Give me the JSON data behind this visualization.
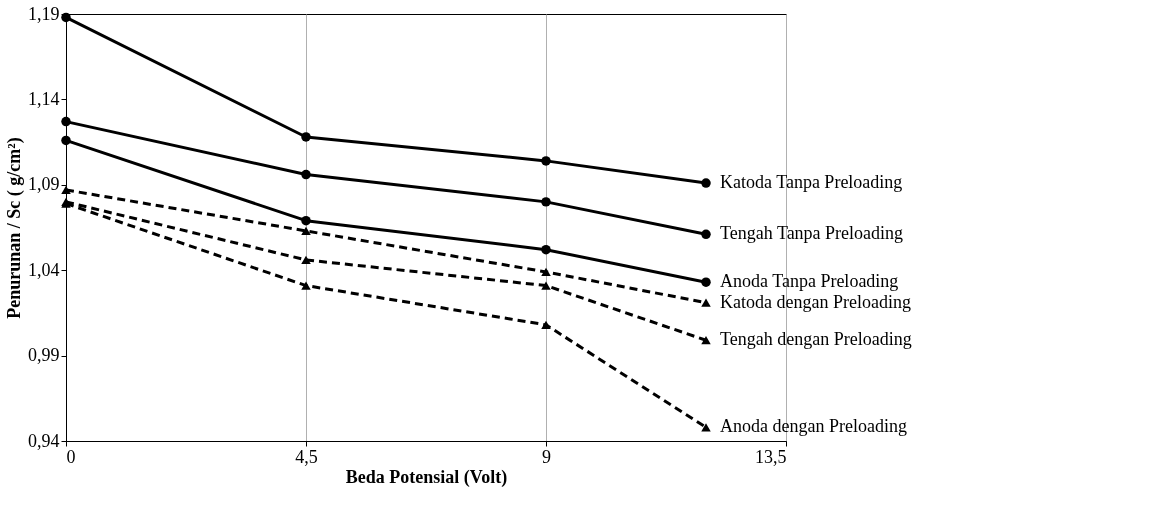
{
  "chart_data": {
    "type": "line",
    "xlabel": "Beda Potensial (Volt)",
    "ylabel": "Penurunan  / Sc ( g/cm²)",
    "x": [
      0,
      4.5,
      9,
      12
    ],
    "series": [
      {
        "name": "Katoda Tanpa Preloading",
        "color": "#000000",
        "marker": "circle",
        "line_style": "solid",
        "values": [
          1.188,
          1.118,
          1.104,
          1.091
        ]
      },
      {
        "name": "Tengah Tanpa Preloading",
        "color": "#000000",
        "marker": "circle",
        "line_style": "solid",
        "values": [
          1.127,
          1.096,
          1.08,
          1.061
        ]
      },
      {
        "name": "Anoda Tanpa Preloading",
        "color": "#000000",
        "marker": "circle",
        "line_style": "solid",
        "values": [
          1.116,
          1.069,
          1.052,
          1.033
        ]
      },
      {
        "name": "Katoda dengan Preloading",
        "color": "#000000",
        "marker": "triangle",
        "line_style": "dashed",
        "values": [
          1.087,
          1.063,
          1.039,
          1.021
        ]
      },
      {
        "name": "Tengah dengan Preloading",
        "color": "#000000",
        "marker": "triangle",
        "line_style": "dashed",
        "values": [
          1.08,
          1.046,
          1.031,
          0.999
        ]
      },
      {
        "name": "Anoda dengan Preloading",
        "color": "#000000",
        "marker": "triangle",
        "line_style": "dashed",
        "values": [
          1.079,
          1.031,
          1.008,
          0.948
        ]
      }
    ],
    "xlim": [
      0,
      13.5
    ],
    "xticks": [
      0,
      {
        "value": 4.5,
        "label": "4,5"
      },
      9,
      {
        "value": 13.5,
        "label": "13,5"
      }
    ],
    "ylim": [
      0.94,
      1.19
    ],
    "yticks": [
      {
        "value": 0.94,
        "label": "0,94"
      },
      {
        "value": 0.99,
        "label": "0,99"
      },
      {
        "value": 1.04,
        "label": "1,04"
      },
      {
        "value": 1.09,
        "label": "1,09"
      },
      {
        "value": 1.14,
        "label": "1,14"
      },
      {
        "value": 1.19,
        "label": "1,19"
      }
    ],
    "grid": "x",
    "legend": false
  }
}
